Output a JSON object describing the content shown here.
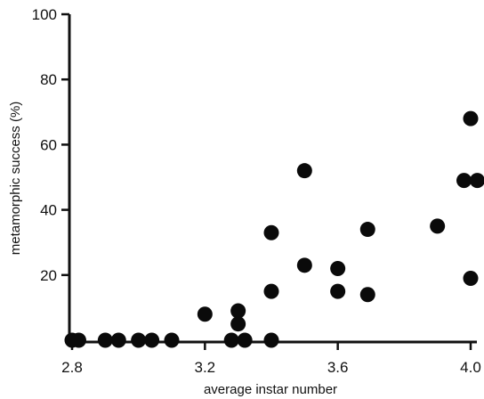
{
  "chart_data": {
    "type": "scatter",
    "title": "",
    "xlabel": "average instar number",
    "ylabel": "metamorphic success (%)",
    "xlim": [
      2.8,
      4.0
    ],
    "ylim": [
      0,
      100
    ],
    "x_ticks": [
      2.8,
      3.2,
      3.6,
      4.0
    ],
    "x_tick_labels": [
      "2.8",
      "3.2",
      "3.6",
      "4.0"
    ],
    "y_ticks": [
      20,
      40,
      60,
      80,
      100
    ],
    "y_tick_labels": [
      "20",
      "40",
      "60",
      "80",
      "100"
    ],
    "grid": false,
    "legend": "none",
    "marker_color": "#0a0a0a",
    "points": [
      {
        "x": 2.8,
        "y": 0
      },
      {
        "x": 2.82,
        "y": 0
      },
      {
        "x": 2.9,
        "y": 0
      },
      {
        "x": 2.94,
        "y": 0
      },
      {
        "x": 3.0,
        "y": 0
      },
      {
        "x": 3.04,
        "y": 0
      },
      {
        "x": 3.1,
        "y": 0
      },
      {
        "x": 3.2,
        "y": 8
      },
      {
        "x": 3.28,
        "y": 0
      },
      {
        "x": 3.3,
        "y": 9
      },
      {
        "x": 3.3,
        "y": 5
      },
      {
        "x": 3.32,
        "y": 0
      },
      {
        "x": 3.4,
        "y": 33
      },
      {
        "x": 3.4,
        "y": 15
      },
      {
        "x": 3.4,
        "y": 0
      },
      {
        "x": 3.5,
        "y": 52
      },
      {
        "x": 3.5,
        "y": 23
      },
      {
        "x": 3.6,
        "y": 22
      },
      {
        "x": 3.6,
        "y": 15
      },
      {
        "x": 3.69,
        "y": 34
      },
      {
        "x": 3.69,
        "y": 14
      },
      {
        "x": 3.9,
        "y": 35
      },
      {
        "x": 3.98,
        "y": 49
      },
      {
        "x": 4.02,
        "y": 49
      },
      {
        "x": 4.0,
        "y": 68
      },
      {
        "x": 4.0,
        "y": 19
      }
    ]
  }
}
